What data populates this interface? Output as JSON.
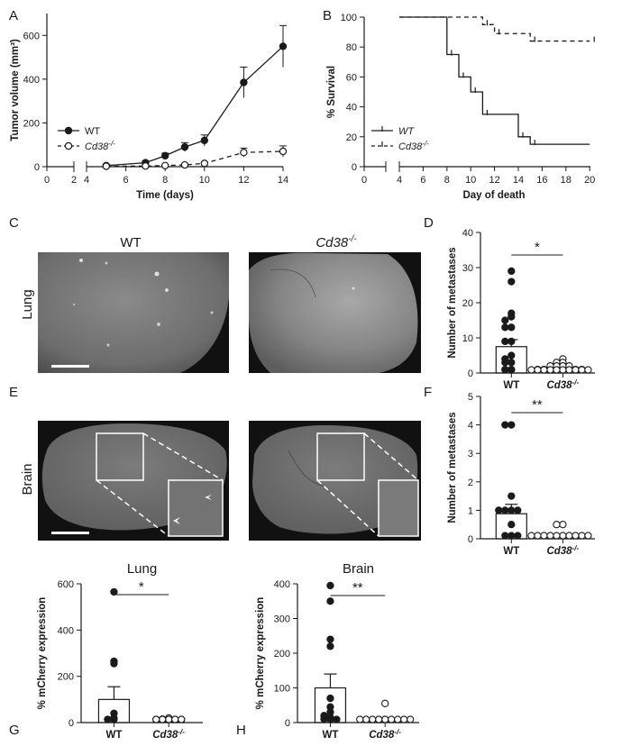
{
  "figure": {
    "panel_letters": [
      "A",
      "B",
      "C",
      "D",
      "E",
      "F",
      "G",
      "H"
    ],
    "micro_col_wt": "WT",
    "micro_col_ko": "Cd38",
    "micro_col_ko_sup": "-/-",
    "row_lung": "Lung",
    "row_brain": "Brain"
  },
  "chart_data": [
    {
      "id": "A",
      "type": "line",
      "xlabel": "Time (days)",
      "ylabel": "Tumor volume (mm³)",
      "xticks": [
        0,
        2,
        4,
        6,
        8,
        10,
        12,
        14
      ],
      "yticks": [
        0,
        200,
        400,
        600
      ],
      "xlim": [
        0,
        14
      ],
      "ylim": [
        0,
        700
      ],
      "x_axis_break": true,
      "legend_position": "left",
      "series": [
        {
          "name": "WT",
          "marker": "filled-circle",
          "dash": false,
          "x": [
            5,
            7,
            8,
            9,
            10,
            12,
            14
          ],
          "y": [
            5,
            18,
            50,
            90,
            120,
            385,
            550
          ],
          "err": [
            5,
            8,
            12,
            20,
            25,
            70,
            95
          ]
        },
        {
          "name": "Cd38",
          "name_sup": "-/-",
          "marker": "open-circle",
          "dash": true,
          "x": [
            5,
            7,
            8,
            9,
            10,
            12,
            14
          ],
          "y": [
            2,
            3,
            5,
            8,
            15,
            65,
            70
          ],
          "err": [
            2,
            2,
            3,
            4,
            6,
            20,
            25
          ]
        }
      ]
    },
    {
      "id": "B",
      "type": "line",
      "subtype": "kaplan-meier",
      "xlabel": "Day of death",
      "ylabel": "% Survival",
      "xticks": [
        0,
        4,
        6,
        8,
        10,
        12,
        14,
        16,
        18,
        20
      ],
      "yticks": [
        0,
        20,
        40,
        60,
        80,
        100
      ],
      "xlim": [
        0,
        20
      ],
      "ylim": [
        0,
        100
      ],
      "x_axis_break": true,
      "legend_position": "bottom-left",
      "series": [
        {
          "name": "WT",
          "dash": false,
          "steps": [
            [
              0,
              100
            ],
            [
              8,
              75
            ],
            [
              9,
              60
            ],
            [
              10,
              50
            ],
            [
              11,
              35
            ],
            [
              14,
              20
            ],
            [
              15,
              15
            ],
            [
              20,
              15
            ]
          ],
          "censor": [
            8,
            9,
            10,
            11,
            14,
            15
          ]
        },
        {
          "name": "Cd38",
          "name_sup": "-/-",
          "dash": true,
          "steps": [
            [
              0,
              100
            ],
            [
              11,
              95
            ],
            [
              12,
              89
            ],
            [
              15,
              84
            ],
            [
              20,
              84
            ]
          ],
          "censor": [
            11,
            12,
            15,
            20
          ]
        }
      ]
    },
    {
      "id": "D",
      "type": "scatter",
      "subtype": "bar-with-points",
      "ylabel": "Number of metastases",
      "yticks": [
        0,
        10,
        20,
        30,
        40
      ],
      "ylim": [
        0,
        40
      ],
      "categories": [
        "WT",
        "Cd38"
      ],
      "category_sup": [
        "",
        "-/-"
      ],
      "means": [
        7.5,
        1
      ],
      "sem": [
        2,
        0.4
      ],
      "points": [
        [
          29,
          26,
          17,
          16,
          15,
          13,
          13,
          9,
          9,
          5,
          4,
          3,
          3,
          1,
          1,
          0,
          0
        ],
        [
          4,
          3,
          3,
          2,
          2,
          2,
          2,
          1,
          1,
          1,
          1,
          0,
          0,
          0,
          0,
          0,
          0,
          0,
          0,
          0,
          0
        ]
      ],
      "significance": "*"
    },
    {
      "id": "F",
      "type": "scatter",
      "subtype": "bar-with-points",
      "ylabel": "Number of metastases",
      "yticks": [
        0,
        1,
        2,
        3,
        4,
        5
      ],
      "ylim": [
        0,
        5
      ],
      "categories": [
        "WT",
        "Cd38"
      ],
      "category_sup": [
        "",
        "-/-"
      ],
      "means": [
        0.88,
        0.08
      ],
      "sem": [
        0.33,
        0.06
      ],
      "points": [
        [
          4,
          4,
          1.5,
          1,
          1,
          1,
          1,
          0.5,
          0,
          0,
          0
        ],
        [
          0.5,
          0.5,
          0,
          0,
          0,
          0,
          0,
          0,
          0,
          0,
          0,
          0
        ]
      ],
      "significance": "**"
    },
    {
      "id": "G",
      "type": "scatter",
      "subtype": "bar-with-points",
      "title": "Lung",
      "ylabel": "% mCherry expression",
      "yticks": [
        0,
        200,
        400,
        600
      ],
      "ylim": [
        0,
        600
      ],
      "categories": [
        "WT",
        "Cd38"
      ],
      "category_sup": [
        "",
        "-/-"
      ],
      "means": [
        100,
        5
      ],
      "sem": [
        55,
        3
      ],
      "points": [
        [
          565,
          265,
          255,
          40,
          20,
          5,
          0,
          0
        ],
        [
          20,
          15,
          10,
          5,
          5,
          0,
          0,
          0,
          0,
          0
        ]
      ],
      "significance": "*"
    },
    {
      "id": "H",
      "type": "scatter",
      "subtype": "bar-with-points",
      "title": "Brain",
      "ylabel": "% mCherry expression",
      "yticks": [
        0,
        100,
        200,
        300,
        400
      ],
      "ylim": [
        0,
        400
      ],
      "categories": [
        "WT",
        "Cd38"
      ],
      "category_sup": [
        "",
        "-/-"
      ],
      "means": [
        100,
        4
      ],
      "sem": [
        40,
        3
      ],
      "points": [
        [
          395,
          350,
          240,
          220,
          70,
          45,
          30,
          20,
          15,
          10,
          5,
          0
        ],
        [
          55,
          5,
          5,
          0,
          0,
          0,
          0,
          0,
          0,
          0,
          0,
          0
        ]
      ],
      "significance": "**"
    }
  ]
}
